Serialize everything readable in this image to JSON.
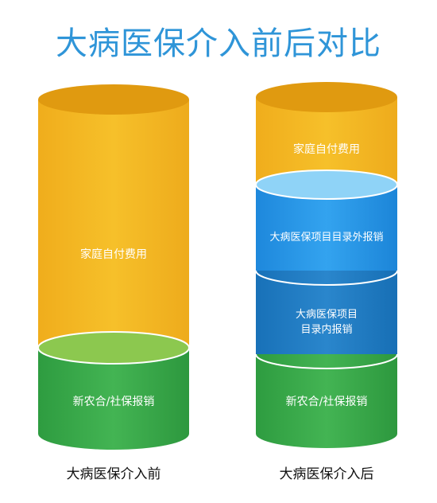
{
  "title": "大病医保介入前后对比",
  "before": {
    "caption": "大病医保介入前",
    "segments": [
      {
        "label": "家庭自付费用",
        "color": "#f3b621"
      },
      {
        "label": "新农合/社保报销",
        "color": "#34a447"
      }
    ]
  },
  "after": {
    "caption": "大病医保介入后",
    "segments": [
      {
        "label": "家庭自付费用",
        "color": "#f3b621"
      },
      {
        "label": "大病医保项目目录外报销",
        "color": "#2a8fe0"
      },
      {
        "label_line1": "大病医保项目",
        "label_line2": "目录内报销",
        "color": "#1f79c2"
      },
      {
        "label": "新农合/社保报销",
        "color": "#34a447"
      }
    ]
  }
}
